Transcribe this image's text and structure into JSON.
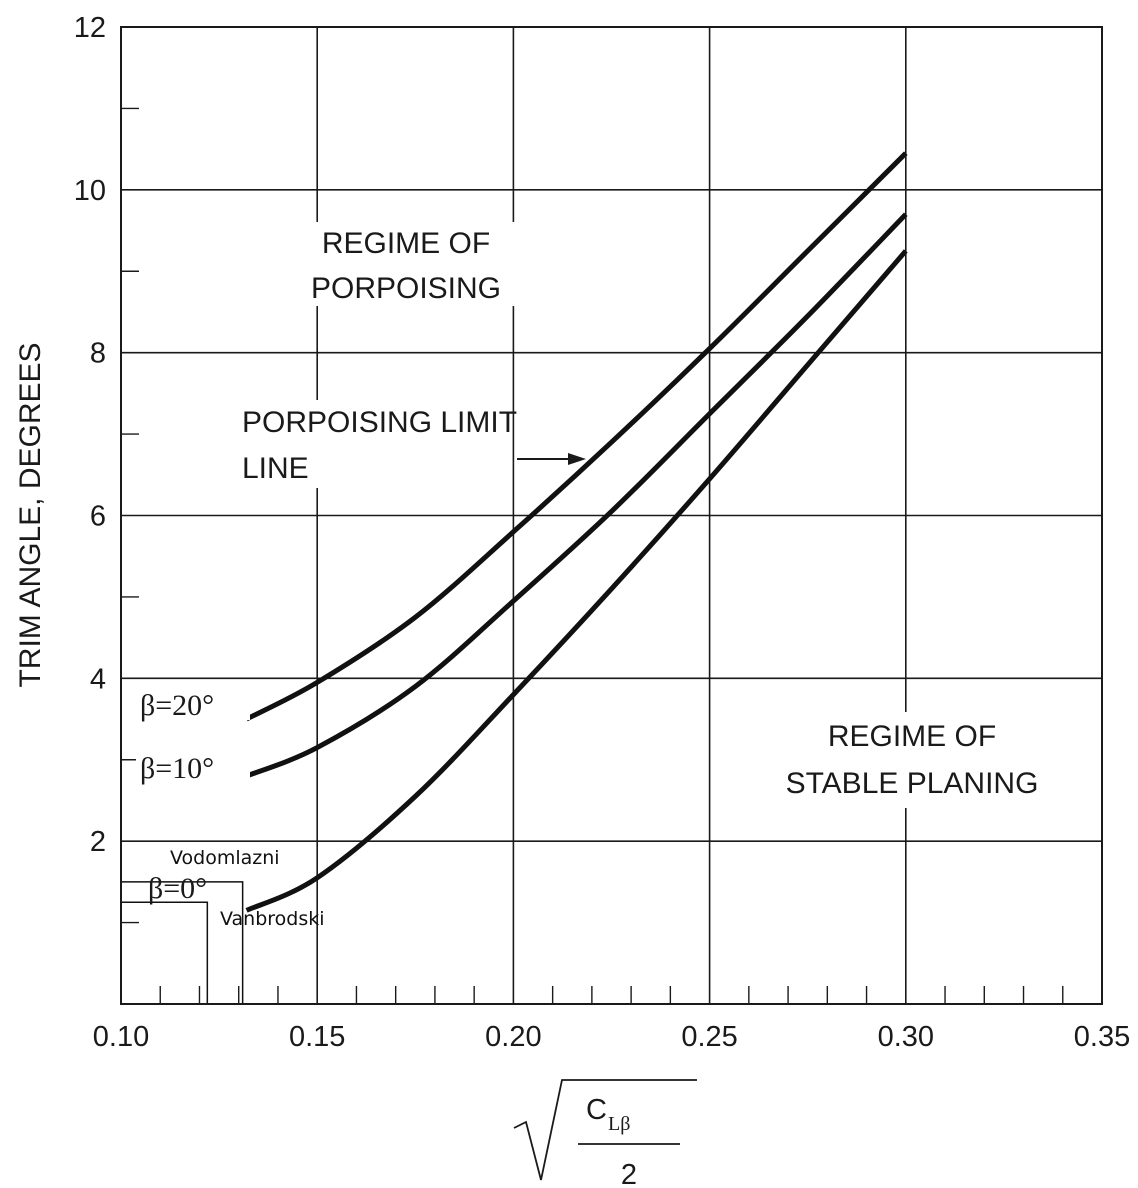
{
  "chart_data": {
    "type": "line",
    "xlabel": "C_Lβ / 2 (square root)",
    "xlabel_parts": {
      "numerator_main": "C",
      "numerator_sub": "Lβ",
      "denominator": "2"
    },
    "ylabel": "TRIM ANGLE, DEGREES",
    "xlim": [
      0.1,
      0.35
    ],
    "ylim": [
      0,
      12
    ],
    "x_ticks": [
      "0.10",
      "0.15",
      "0.20",
      "0.25",
      "0.30",
      "0.35"
    ],
    "y_ticks": [
      "2",
      "4",
      "6",
      "8",
      "10",
      "12"
    ],
    "grid": true,
    "series": [
      {
        "name": "β=20°",
        "x": [
          0.132,
          0.15,
          0.175,
          0.2,
          0.225,
          0.25,
          0.275,
          0.3
        ],
        "y": [
          3.5,
          3.95,
          4.75,
          5.8,
          6.9,
          8.05,
          9.25,
          10.45
        ]
      },
      {
        "name": "β=10°",
        "x": [
          0.132,
          0.15,
          0.175,
          0.2,
          0.225,
          0.25,
          0.275,
          0.3
        ],
        "y": [
          2.8,
          3.15,
          3.9,
          4.95,
          6.05,
          7.25,
          8.45,
          9.7
        ]
      },
      {
        "name": "β=0°",
        "x": [
          0.132,
          0.15,
          0.175,
          0.2,
          0.225,
          0.25,
          0.275,
          0.3
        ],
        "y": [
          1.15,
          1.55,
          2.55,
          3.8,
          5.1,
          6.45,
          7.85,
          9.25
        ]
      }
    ],
    "annotations": {
      "porpoising_regime": [
        "REGIME OF",
        "PORPOISING"
      ],
      "limit_line": [
        "PORPOISING LIMIT",
        "LINE"
      ],
      "stable_regime": [
        "REGIME OF",
        "STABLE PLANING"
      ],
      "boat_upper": {
        "label": "Vodomlazni",
        "x": 0.131,
        "y": 1.5
      },
      "boat_lower": {
        "label": "Vanbrodski",
        "x": 0.122,
        "y": 1.25
      }
    },
    "series_labels": [
      "β=20°",
      "β=10°",
      "β=0°"
    ]
  }
}
